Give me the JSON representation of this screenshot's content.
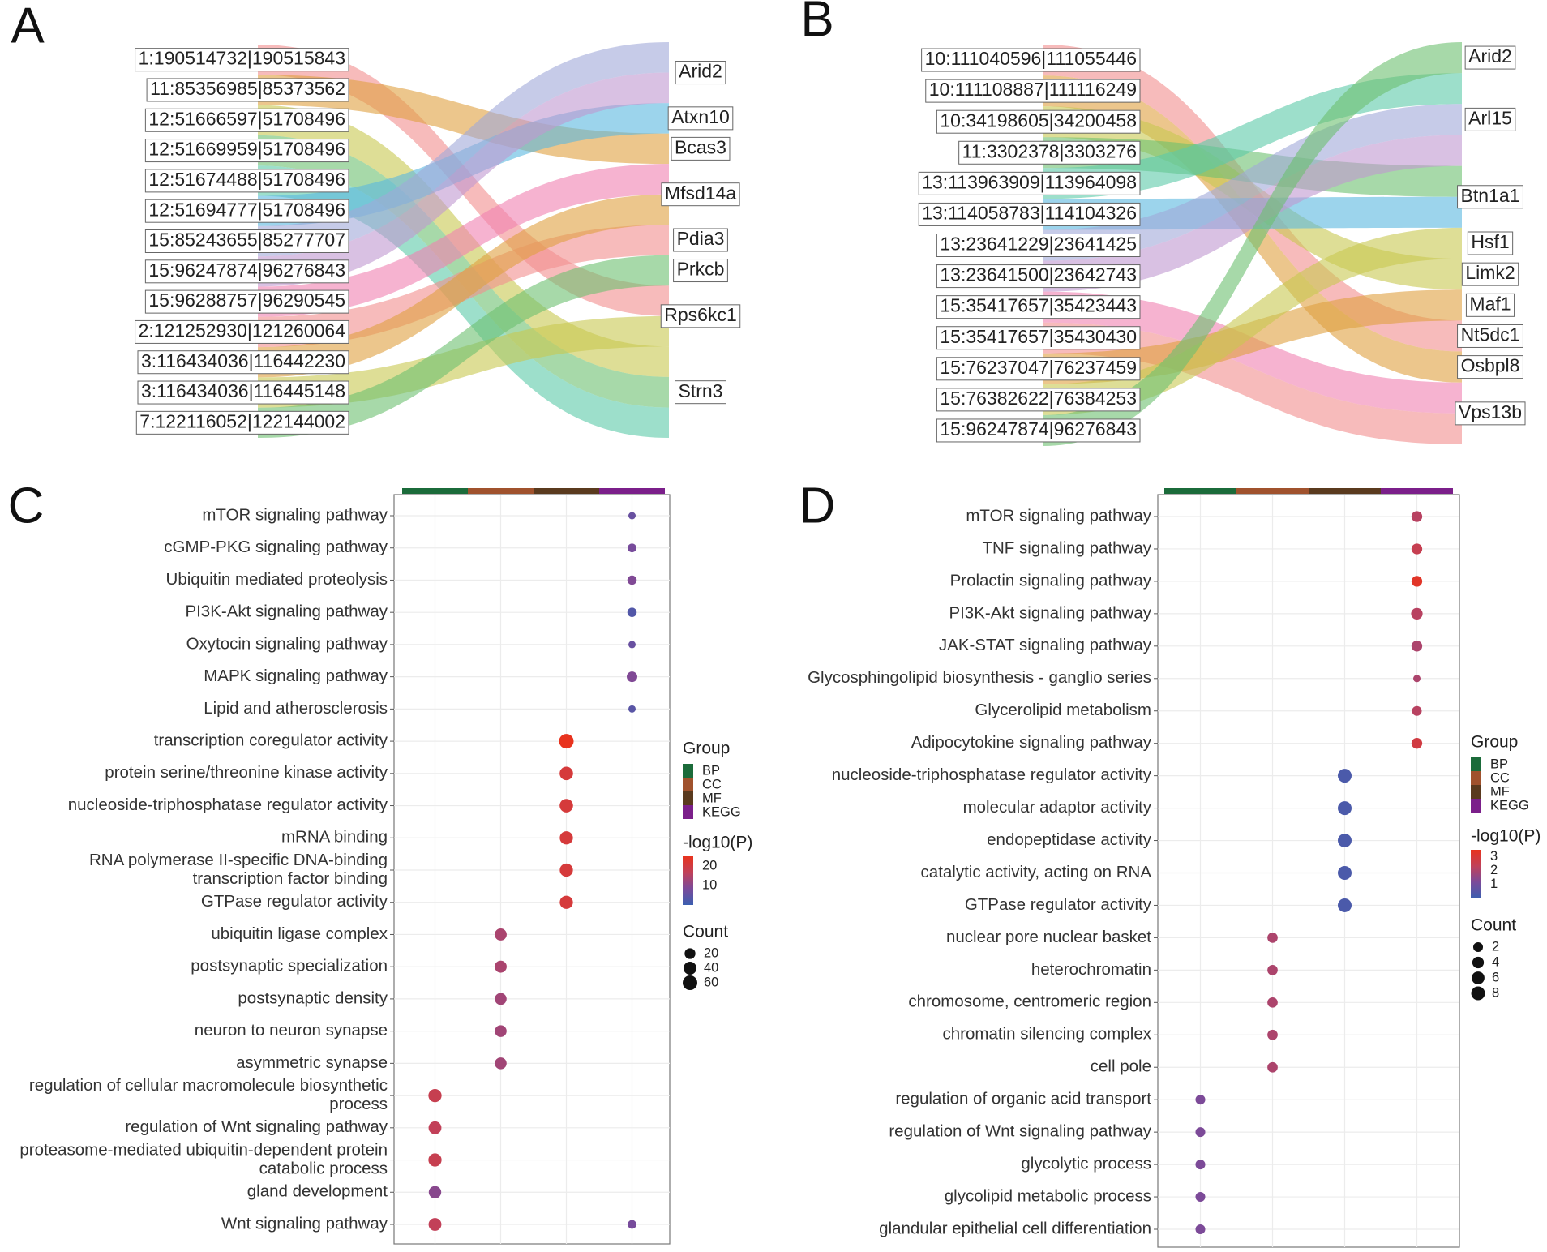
{
  "colors": {
    "groups": {
      "BP": "#1b6b3a",
      "CC": "#a0522d",
      "MF": "#5a3a1e",
      "KEGG": "#7b1f8a"
    },
    "gradient": [
      "#3b5fb0",
      "#7a4a9a",
      "#c0415a",
      "#e8331e"
    ],
    "sankey": [
      "#f28e8e",
      "#e0a040",
      "#c8c850",
      "#6cc070",
      "#5ccaa8",
      "#5ab8e0",
      "#a0a8d8",
      "#c098d0",
      "#f080b0"
    ]
  },
  "chart_data": [
    {
      "type": "sankey",
      "panel": "A",
      "left": [
        "1:190514732|190515843",
        "11:85356985|85373562",
        "12:51666597|51708496",
        "12:51669959|51708496",
        "12:51674488|51708496",
        "12:51694777|51708496",
        "15:85243655|85277707",
        "15:96247874|96276843",
        "15:96288757|96290545",
        "2:121252930|121260064",
        "3:116434036|116442230",
        "3:116434036|116445148",
        "7:122116052|122144002"
      ],
      "right": [
        "Arid2",
        "Atxn10",
        "Bcas3",
        "Mfsd14a",
        "Pdia3",
        "Prkcb",
        "Rps6kc1",
        "Strn3"
      ],
      "links": [
        [
          0,
          6
        ],
        [
          1,
          2
        ],
        [
          2,
          7
        ],
        [
          3,
          7
        ],
        [
          4,
          7
        ],
        [
          5,
          1
        ],
        [
          6,
          0
        ],
        [
          7,
          0
        ],
        [
          8,
          3
        ],
        [
          9,
          4
        ],
        [
          10,
          3
        ],
        [
          11,
          6
        ],
        [
          12,
          5
        ]
      ]
    },
    {
      "type": "sankey",
      "panel": "B",
      "left": [
        "10:111040596|111055446",
        "10:111108887|111116249",
        "10:34198605|34200458",
        "11:3302378|3303276",
        "13:113963909|113964098",
        "13:114058783|114104326",
        "13:23641229|23641425",
        "13:23641500|23642743",
        "15:35417657|35423443",
        "15:35417657|35430430",
        "15:76237047|76237459",
        "15:76382622|76384253",
        "15:96247874|96276843"
      ],
      "right": [
        "Arid2",
        "Arl15",
        "Btn1a1",
        "Hsf1",
        "Limk2",
        "Maf1",
        "Nt5dc1",
        "Osbpl8",
        "Vps13b"
      ],
      "links": [
        [
          0,
          6
        ],
        [
          1,
          7
        ],
        [
          2,
          4
        ],
        [
          3,
          2
        ],
        [
          4,
          1
        ],
        [
          5,
          2
        ],
        [
          6,
          1
        ],
        [
          7,
          1
        ],
        [
          8,
          8
        ],
        [
          9,
          8
        ],
        [
          10,
          5
        ],
        [
          11,
          3
        ],
        [
          12,
          0
        ]
      ]
    },
    {
      "type": "scatter",
      "panel": "C",
      "groups": [
        "BP",
        "CC",
        "MF",
        "KEGG"
      ],
      "terms": [
        {
          "lines": [
            "mTOR signaling pathway"
          ],
          "group": "KEGG",
          "logp": 6,
          "count": 8
        },
        {
          "lines": [
            "cGMP-PKG signaling pathway"
          ],
          "group": "KEGG",
          "logp": 8,
          "count": 10
        },
        {
          "lines": [
            "Ubiquitin mediated proteolysis"
          ],
          "group": "KEGG",
          "logp": 9,
          "count": 12
        },
        {
          "lines": [
            "PI3K-Akt signaling pathway"
          ],
          "group": "KEGG",
          "logp": 3,
          "count": 12
        },
        {
          "lines": [
            "Oxytocin signaling pathway"
          ],
          "group": "KEGG",
          "logp": 6,
          "count": 8
        },
        {
          "lines": [
            "MAPK signaling pathway"
          ],
          "group": "KEGG",
          "logp": 9,
          "count": 18
        },
        {
          "lines": [
            "Lipid and atherosclerosis"
          ],
          "group": "KEGG",
          "logp": 4,
          "count": 8
        },
        {
          "lines": [
            "transcription coregulator activity"
          ],
          "group": "MF",
          "logp": 25,
          "count": 60
        },
        {
          "lines": [
            "protein serine/threonine kinase activity"
          ],
          "group": "MF",
          "logp": 21,
          "count": 45
        },
        {
          "lines": [
            "nucleoside-triphosphatase regulator activity"
          ],
          "group": "MF",
          "logp": 21,
          "count": 45
        },
        {
          "lines": [
            "mRNA binding"
          ],
          "group": "MF",
          "logp": 21,
          "count": 42
        },
        {
          "lines": [
            "RNA polymerase II-specific DNA-binding",
            "transcription factor binding"
          ],
          "group": "MF",
          "logp": 21,
          "count": 42
        },
        {
          "lines": [
            "GTPase regulator activity"
          ],
          "group": "MF",
          "logp": 21,
          "count": 42
        },
        {
          "lines": [
            "ubiquitin ligase complex"
          ],
          "group": "CC",
          "logp": 14,
          "count": 30
        },
        {
          "lines": [
            "postsynaptic specialization"
          ],
          "group": "CC",
          "logp": 14,
          "count": 30
        },
        {
          "lines": [
            "postsynaptic density"
          ],
          "group": "CC",
          "logp": 13,
          "count": 28
        },
        {
          "lines": [
            "neuron to neuron synapse"
          ],
          "group": "CC",
          "logp": 13,
          "count": 28
        },
        {
          "lines": [
            "asymmetric synapse"
          ],
          "group": "CC",
          "logp": 13,
          "count": 28
        },
        {
          "lines": [
            "regulation of cellular macromolecule biosynthetic",
            "process"
          ],
          "group": "BP",
          "logp": 18,
          "count": 42
        },
        {
          "lines": [
            "regulation of Wnt signaling pathway"
          ],
          "group": "BP",
          "logp": 17,
          "count": 38
        },
        {
          "lines": [
            "proteasome-mediated ubiquitin-dependent protein",
            "catabolic process"
          ],
          "group": "BP",
          "logp": 18,
          "count": 42
        },
        {
          "lines": [
            "gland development"
          ],
          "group": "BP",
          "logp": 10,
          "count": 34
        },
        {
          "lines": [
            "Wnt signaling pathway"
          ],
          "group": "BP",
          "logp": 17,
          "count": 38,
          "extra": {
            "group": "KEGG",
            "logp": 8,
            "count": 10
          }
        }
      ],
      "legend": {
        "group_title": "Group",
        "group_labels": [
          "BP",
          "CC",
          "MF",
          "KEGG"
        ],
        "color_title": "-log10(P)",
        "color_ticks": [
          "20",
          "10"
        ],
        "color_range": [
          0,
          25
        ],
        "size_title": "Count",
        "size_ticks": [
          "20",
          "40",
          "60"
        ]
      }
    },
    {
      "type": "scatter",
      "panel": "D",
      "groups": [
        "BP",
        "CC",
        "MF",
        "KEGG"
      ],
      "terms": [
        {
          "lines": [
            "mTOR signaling pathway"
          ],
          "group": "KEGG",
          "logp": 2.2,
          "count": 3
        },
        {
          "lines": [
            "TNF signaling pathway"
          ],
          "group": "KEGG",
          "logp": 2.5,
          "count": 3
        },
        {
          "lines": [
            "Prolactin signaling pathway"
          ],
          "group": "KEGG",
          "logp": 3.3,
          "count": 3
        },
        {
          "lines": [
            "PI3K-Akt signaling pathway"
          ],
          "group": "KEGG",
          "logp": 2.2,
          "count": 4
        },
        {
          "lines": [
            "JAK-STAT signaling pathway"
          ],
          "group": "KEGG",
          "logp": 2.0,
          "count": 3
        },
        {
          "lines": [
            "Glycosphingolipid biosynthesis - ganglio series"
          ],
          "group": "KEGG",
          "logp": 2.0,
          "count": 1
        },
        {
          "lines": [
            "Glycerolipid metabolism"
          ],
          "group": "KEGG",
          "logp": 2.2,
          "count": 2
        },
        {
          "lines": [
            "Adipocytokine signaling pathway"
          ],
          "group": "KEGG",
          "logp": 2.8,
          "count": 3
        },
        {
          "lines": [
            "nucleoside-triphosphatase regulator activity"
          ],
          "group": "MF",
          "logp": 0.3,
          "count": 8
        },
        {
          "lines": [
            "molecular adaptor activity"
          ],
          "group": "MF",
          "logp": 0.3,
          "count": 8
        },
        {
          "lines": [
            "endopeptidase activity"
          ],
          "group": "MF",
          "logp": 0.3,
          "count": 8
        },
        {
          "lines": [
            "catalytic activity, acting on RNA"
          ],
          "group": "MF",
          "logp": 0.3,
          "count": 8
        },
        {
          "lines": [
            "GTPase regulator activity"
          ],
          "group": "MF",
          "logp": 0.3,
          "count": 8
        },
        {
          "lines": [
            "nuclear pore nuclear basket"
          ],
          "group": "CC",
          "logp": 2.0,
          "count": 2.5
        },
        {
          "lines": [
            "heterochromatin"
          ],
          "group": "CC",
          "logp": 2.0,
          "count": 2.5
        },
        {
          "lines": [
            "chromosome, centromeric region"
          ],
          "group": "CC",
          "logp": 2.0,
          "count": 2.5
        },
        {
          "lines": [
            "chromatin silencing complex"
          ],
          "group": "CC",
          "logp": 2.0,
          "count": 2.5
        },
        {
          "lines": [
            "cell pole"
          ],
          "group": "CC",
          "logp": 2.0,
          "count": 2.5
        },
        {
          "lines": [
            "regulation of organic acid transport"
          ],
          "group": "BP",
          "logp": 1.2,
          "count": 2
        },
        {
          "lines": [
            "regulation of Wnt signaling pathway"
          ],
          "group": "BP",
          "logp": 1.2,
          "count": 2
        },
        {
          "lines": [
            "glycolytic process"
          ],
          "group": "BP",
          "logp": 1.2,
          "count": 2
        },
        {
          "lines": [
            "glycolipid metabolic process"
          ],
          "group": "BP",
          "logp": 1.2,
          "count": 2
        },
        {
          "lines": [
            "glandular epithelial cell differentiation"
          ],
          "group": "BP",
          "logp": 1.2,
          "count": 2
        }
      ],
      "legend": {
        "group_title": "Group",
        "group_labels": [
          "BP",
          "CC",
          "MF",
          "KEGG"
        ],
        "color_title": "-log10(P)",
        "color_ticks": [
          "3",
          "2",
          "1"
        ],
        "color_range": [
          0,
          3.5
        ],
        "size_title": "Count",
        "size_ticks": [
          "2",
          "4",
          "6",
          "8"
        ]
      }
    }
  ]
}
